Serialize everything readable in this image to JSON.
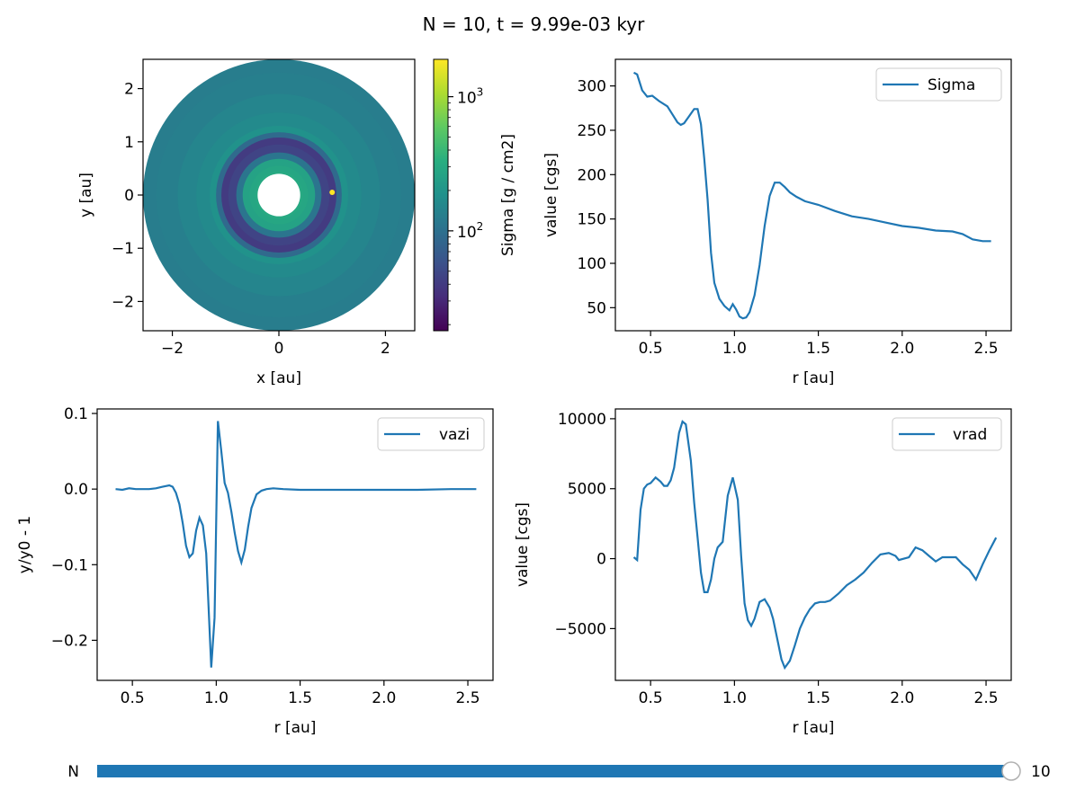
{
  "figure": {
    "title": "N = 10, t = 9.99e-03 kyr",
    "slider": {
      "label": "N",
      "value": "10",
      "fraction": 1.0,
      "fill_color": "#1f77b4"
    }
  },
  "colors": {
    "series": "#1f77b4",
    "axes": "#000000",
    "hole": "#ffffff"
  },
  "chart_data": [
    {
      "id": "sigma_map",
      "type": "heatmap",
      "xlabel": "x [au]",
      "ylabel": "y [au]",
      "xlim": [
        -2.55,
        2.55
      ],
      "ylim": [
        -2.55,
        2.55
      ],
      "xticks": [
        {
          "v": -2,
          "label": "−2"
        },
        {
          "v": 0,
          "label": "0"
        },
        {
          "v": 2,
          "label": "2"
        }
      ],
      "yticks": [
        {
          "v": 2,
          "label": "2"
        },
        {
          "v": 1,
          "label": "1"
        },
        {
          "v": 0,
          "label": "0"
        },
        {
          "v": -1,
          "label": "−1"
        },
        {
          "v": -2,
          "label": "−2"
        }
      ],
      "colorbar": {
        "label": "Sigma  [g / cm2]",
        "scale": "log",
        "range": [
          18,
          1900
        ],
        "colormap": "viridis",
        "ticks": [
          {
            "v": 1000,
            "base": "10",
            "exp": "3"
          },
          {
            "v": 100,
            "base": "10",
            "exp": "2"
          }
        ]
      },
      "disk": {
        "r_inner": 0.4,
        "r_outer": 2.55,
        "planet": [
          1.0,
          0.05
        ]
      },
      "rings": [
        {
          "r": 0.45,
          "sigma": 300
        },
        {
          "r": 0.55,
          "sigma": 280
        },
        {
          "r": 0.68,
          "sigma": 262
        },
        {
          "r": 0.8,
          "sigma": 110
        },
        {
          "r": 0.95,
          "sigma": 46
        },
        {
          "r": 1.08,
          "sigma": 40
        },
        {
          "r": 1.18,
          "sigma": 90
        },
        {
          "r": 1.3,
          "sigma": 190
        },
        {
          "r": 1.55,
          "sigma": 163
        },
        {
          "r": 1.9,
          "sigma": 147
        },
        {
          "r": 2.3,
          "sigma": 132
        },
        {
          "r": 2.55,
          "sigma": 126
        }
      ]
    },
    {
      "id": "sigma_profile",
      "type": "line",
      "xlabel": "r [au]",
      "ylabel": "value [cgs]",
      "xlim": [
        0.29,
        2.65
      ],
      "ylim": [
        24,
        330
      ],
      "xticks": [
        0.5,
        1.0,
        1.5,
        2.0,
        2.5
      ],
      "yticks": [
        50,
        100,
        150,
        200,
        250,
        300
      ],
      "legend": "top-right",
      "series": [
        {
          "name": "Sigma",
          "x": [
            0.4,
            0.42,
            0.45,
            0.48,
            0.51,
            0.55,
            0.6,
            0.63,
            0.66,
            0.68,
            0.7,
            0.73,
            0.76,
            0.78,
            0.8,
            0.82,
            0.84,
            0.86,
            0.88,
            0.91,
            0.94,
            0.97,
            0.99,
            1.01,
            1.03,
            1.05,
            1.07,
            1.09,
            1.12,
            1.15,
            1.18,
            1.21,
            1.24,
            1.27,
            1.3,
            1.33,
            1.37,
            1.42,
            1.5,
            1.6,
            1.7,
            1.8,
            1.9,
            2.0,
            2.1,
            2.2,
            2.3,
            2.36,
            2.42,
            2.48,
            2.53
          ],
          "y": [
            315,
            313,
            295,
            288,
            289,
            283,
            277,
            268,
            259,
            256,
            258,
            266,
            274,
            274,
            257,
            218,
            172,
            112,
            78,
            60,
            52,
            47,
            54,
            48,
            40,
            38,
            39,
            45,
            64,
            98,
            142,
            176,
            191,
            191,
            186,
            180,
            175,
            170,
            166,
            159,
            153,
            150,
            146,
            142,
            140,
            137,
            136,
            133,
            127,
            125,
            125
          ]
        }
      ]
    },
    {
      "id": "vazi_profile",
      "type": "line",
      "xlabel": "r [au]",
      "ylabel": "y/y0 - 1",
      "xlim": [
        0.29,
        2.65
      ],
      "ylim": [
        -0.253,
        0.106
      ],
      "xticks": [
        0.5,
        1.0,
        1.5,
        2.0,
        2.5
      ],
      "yticks": [
        {
          "v": 0.1,
          "label": "0.1"
        },
        {
          "v": 0.0,
          "label": "0.0"
        },
        {
          "v": -0.1,
          "label": "−0.1"
        },
        {
          "v": -0.2,
          "label": "−0.2"
        }
      ],
      "legend": "top-right",
      "series": [
        {
          "name": "vazi",
          "x": [
            0.4,
            0.44,
            0.48,
            0.52,
            0.56,
            0.6,
            0.64,
            0.68,
            0.72,
            0.74,
            0.76,
            0.78,
            0.8,
            0.82,
            0.84,
            0.86,
            0.88,
            0.9,
            0.92,
            0.94,
            0.97,
            0.99,
            1.01,
            1.03,
            1.05,
            1.07,
            1.09,
            1.11,
            1.13,
            1.15,
            1.17,
            1.19,
            1.21,
            1.24,
            1.27,
            1.3,
            1.34,
            1.4,
            1.5,
            1.6,
            1.8,
            2.0,
            2.2,
            2.4,
            2.55
          ],
          "y": [
            0.0,
            -0.001,
            0.001,
            0.0,
            0.0,
            0.0,
            0.001,
            0.003,
            0.005,
            0.003,
            -0.005,
            -0.02,
            -0.045,
            -0.075,
            -0.09,
            -0.085,
            -0.055,
            -0.038,
            -0.048,
            -0.085,
            -0.236,
            -0.17,
            0.09,
            0.05,
            0.008,
            -0.005,
            -0.03,
            -0.058,
            -0.082,
            -0.097,
            -0.08,
            -0.05,
            -0.025,
            -0.007,
            -0.002,
            0.0,
            0.001,
            0.0,
            -0.001,
            -0.001,
            -0.001,
            -0.001,
            -0.001,
            0.0,
            0.0
          ]
        }
      ]
    },
    {
      "id": "vrad_profile",
      "type": "line",
      "xlabel": "r [au]",
      "ylabel": "value [cgs]",
      "xlim": [
        0.29,
        2.65
      ],
      "ylim": [
        -8700,
        10700
      ],
      "xticks": [
        0.5,
        1.0,
        1.5,
        2.0,
        2.5
      ],
      "yticks": [
        {
          "v": 10000,
          "label": "10000"
        },
        {
          "v": 5000,
          "label": "5000"
        },
        {
          "v": 0,
          "label": "0"
        },
        {
          "v": -5000,
          "label": "−5000"
        }
      ],
      "legend": "top-right",
      "series": [
        {
          "name": "vrad",
          "x": [
            0.4,
            0.42,
            0.44,
            0.46,
            0.48,
            0.5,
            0.53,
            0.56,
            0.58,
            0.6,
            0.62,
            0.64,
            0.67,
            0.69,
            0.71,
            0.74,
            0.76,
            0.78,
            0.8,
            0.82,
            0.84,
            0.86,
            0.88,
            0.9,
            0.93,
            0.96,
            0.99,
            1.02,
            1.04,
            1.06,
            1.08,
            1.1,
            1.12,
            1.15,
            1.18,
            1.21,
            1.23,
            1.26,
            1.28,
            1.3,
            1.33,
            1.36,
            1.39,
            1.42,
            1.45,
            1.48,
            1.51,
            1.54,
            1.57,
            1.62,
            1.67,
            1.72,
            1.77,
            1.82,
            1.87,
            1.92,
            1.96,
            1.98,
            2.04,
            2.08,
            2.12,
            2.16,
            2.2,
            2.24,
            2.28,
            2.32,
            2.36,
            2.4,
            2.44,
            2.48,
            2.52,
            2.56
          ],
          "y": [
            100,
            -100,
            3500,
            5000,
            5300,
            5400,
            5800,
            5500,
            5200,
            5200,
            5600,
            6500,
            9000,
            9800,
            9600,
            7000,
            4000,
            1500,
            -1000,
            -2400,
            -2400,
            -1500,
            0,
            800,
            1200,
            4500,
            5800,
            4200,
            200,
            -3200,
            -4400,
            -4800,
            -4300,
            -3100,
            -2900,
            -3500,
            -4300,
            -6000,
            -7200,
            -7800,
            -7300,
            -6200,
            -5000,
            -4200,
            -3600,
            -3200,
            -3100,
            -3100,
            -3000,
            -2500,
            -1900,
            -1500,
            -1000,
            -300,
            300,
            400,
            200,
            -100,
            100,
            800,
            600,
            200,
            -200,
            100,
            100,
            100,
            -400,
            -800,
            -1500,
            -400,
            600,
            1500
          ]
        }
      ]
    }
  ]
}
